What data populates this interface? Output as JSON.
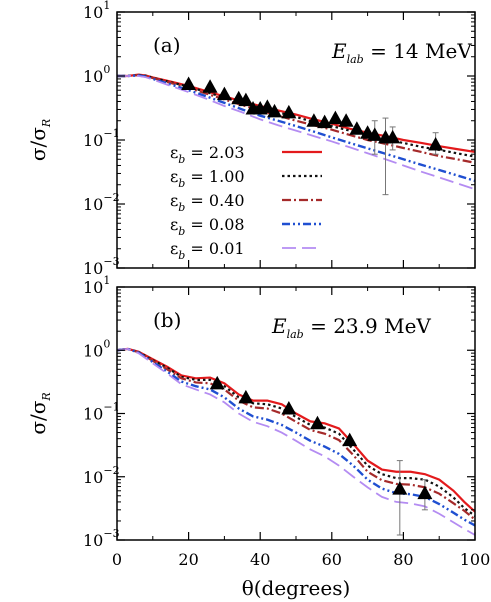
{
  "chart_data": {
    "type": "line",
    "x_axis": {
      "label": "θ(degrees)",
      "range": [
        0,
        100
      ],
      "ticks": [
        0,
        20,
        40,
        60,
        80,
        100
      ]
    },
    "y_axis": {
      "label": "σ/σ_R",
      "scale": "log",
      "range": [
        0.001,
        10
      ],
      "ticks": [
        "10^1",
        "10^0",
        "10^-1",
        "10^-2",
        "10^-3"
      ]
    },
    "legend": {
      "placement": "lower-left",
      "entries": [
        {
          "label": "ε_b = 2.03",
          "color": "#e31a1c",
          "dash": "solid"
        },
        {
          "label": "ε_b = 1.00",
          "color": "#111111",
          "dash": "dotted"
        },
        {
          "label": "ε_b = 0.40",
          "color": "#a52a2a",
          "dash": "dash-dot"
        },
        {
          "label": "ε_b = 0.08",
          "color": "#1f4fd1",
          "dash": "dash-dot-dot"
        },
        {
          "label": "ε_b = 0.01",
          "color": "#b48cf2",
          "dash": "long-dash"
        }
      ]
    },
    "panels": [
      {
        "label": "(a)",
        "energy_label": "E_lab = 14 MeV",
        "data_points": [
          {
            "x": 20,
            "y": 0.75
          },
          {
            "x": 26,
            "y": 0.68
          },
          {
            "x": 30,
            "y": 0.52
          },
          {
            "x": 34,
            "y": 0.45
          },
          {
            "x": 36,
            "y": 0.42
          },
          {
            "x": 38,
            "y": 0.31
          },
          {
            "x": 40,
            "y": 0.31
          },
          {
            "x": 42,
            "y": 0.33
          },
          {
            "x": 44,
            "y": 0.28
          },
          {
            "x": 48,
            "y": 0.27
          },
          {
            "x": 55,
            "y": 0.2
          },
          {
            "x": 58,
            "y": 0.19
          },
          {
            "x": 61,
            "y": 0.22
          },
          {
            "x": 64,
            "y": 0.2
          },
          {
            "x": 67,
            "y": 0.15
          },
          {
            "x": 70,
            "y": 0.13
          },
          {
            "x": 72,
            "y": 0.12
          },
          {
            "x": 75,
            "y": 0.11
          },
          {
            "x": 77,
            "y": 0.11
          },
          {
            "x": 89,
            "y": 0.085
          }
        ],
        "error_bars": [
          {
            "x": 72,
            "low": 0.06,
            "high": 0.2
          },
          {
            "x": 75,
            "low": 0.014,
            "high": 0.22
          },
          {
            "x": 77,
            "low": 0.07,
            "high": 0.16
          },
          {
            "x": 89,
            "low": 0.06,
            "high": 0.13
          }
        ],
        "series": [
          {
            "name": "ε_b = 2.03",
            "x": [
              0,
              3,
              6,
              8,
              10,
              15,
              20,
              25,
              30,
              35,
              40,
              45,
              50,
              55,
              60,
              65,
              70,
              75,
              80,
              85,
              90,
              95,
              100
            ],
            "y": [
              1.0,
              1.0,
              1.05,
              1.02,
              0.95,
              0.82,
              0.7,
              0.58,
              0.48,
              0.4,
              0.34,
              0.29,
              0.25,
              0.21,
              0.18,
              0.15,
              0.13,
              0.115,
              0.1,
              0.09,
              0.08,
              0.072,
              0.065
            ]
          },
          {
            "name": "ε_b = 1.00",
            "x": [
              0,
              3,
              6,
              8,
              10,
              15,
              20,
              25,
              30,
              35,
              40,
              45,
              50,
              55,
              60,
              65,
              70,
              75,
              80,
              85,
              90,
              95,
              100
            ],
            "y": [
              1.0,
              1.0,
              1.04,
              1.01,
              0.94,
              0.8,
              0.68,
              0.56,
              0.46,
              0.38,
              0.32,
              0.27,
              0.23,
              0.19,
              0.165,
              0.14,
              0.12,
              0.1,
              0.09,
              0.078,
              0.07,
              0.062,
              0.055
            ]
          },
          {
            "name": "ε_b = 0.40",
            "x": [
              0,
              3,
              6,
              8,
              10,
              15,
              20,
              25,
              30,
              35,
              40,
              45,
              50,
              55,
              60,
              65,
              70,
              75,
              80,
              85,
              90,
              95,
              100
            ],
            "y": [
              1.0,
              1.0,
              1.03,
              1.0,
              0.93,
              0.78,
              0.65,
              0.53,
              0.43,
              0.35,
              0.29,
              0.24,
              0.2,
              0.17,
              0.145,
              0.12,
              0.1,
              0.087,
              0.075,
              0.065,
              0.056,
              0.05,
              0.044
            ]
          },
          {
            "name": "ε_b = 0.08",
            "x": [
              0,
              3,
              6,
              8,
              10,
              15,
              20,
              25,
              30,
              35,
              40,
              45,
              50,
              55,
              60,
              65,
              70,
              75,
              80,
              85,
              90,
              95,
              100
            ],
            "y": [
              1.0,
              1.0,
              1.02,
              0.98,
              0.9,
              0.74,
              0.6,
              0.48,
              0.38,
              0.3,
              0.24,
              0.2,
              0.165,
              0.135,
              0.11,
              0.09,
              0.074,
              0.061,
              0.05,
              0.041,
              0.034,
              0.028,
              0.023
            ]
          },
          {
            "name": "ε_b = 0.01",
            "x": [
              0,
              3,
              6,
              8,
              10,
              15,
              20,
              25,
              30,
              35,
              40,
              45,
              50,
              55,
              60,
              65,
              70,
              75,
              80,
              85,
              90,
              95,
              100
            ],
            "y": [
              1.0,
              1.0,
              1.0,
              0.96,
              0.88,
              0.7,
              0.56,
              0.44,
              0.34,
              0.27,
              0.21,
              0.17,
              0.14,
              0.115,
              0.095,
              0.077,
              0.062,
              0.05,
              0.04,
              0.032,
              0.026,
              0.021,
              0.017
            ]
          }
        ]
      },
      {
        "label": "(b)",
        "energy_label": "E_lab = 23.9 MeV",
        "data_points": [
          {
            "x": 28,
            "y": 0.3
          },
          {
            "x": 36,
            "y": 0.18
          },
          {
            "x": 48,
            "y": 0.12
          },
          {
            "x": 56,
            "y": 0.07
          },
          {
            "x": 65,
            "y": 0.038
          },
          {
            "x": 79,
            "y": 0.0065
          },
          {
            "x": 86,
            "y": 0.0055
          }
        ],
        "error_bars": [
          {
            "x": 79,
            "low": 0.0012,
            "high": 0.018
          },
          {
            "x": 86,
            "low": 0.003,
            "high": 0.009
          }
        ],
        "series": [
          {
            "name": "ε_b = 2.03",
            "x": [
              0,
              3,
              6,
              10,
              14,
              18,
              22,
              26,
              30,
              34,
              38,
              42,
              46,
              50,
              54,
              58,
              62,
              66,
              70,
              74,
              78,
              82,
              86,
              90,
              94,
              97,
              100
            ],
            "y": [
              1.0,
              1.05,
              0.95,
              0.72,
              0.55,
              0.4,
              0.36,
              0.37,
              0.3,
              0.2,
              0.16,
              0.16,
              0.14,
              0.1,
              0.075,
              0.07,
              0.058,
              0.033,
              0.018,
              0.013,
              0.012,
              0.012,
              0.011,
              0.009,
              0.006,
              0.004,
              0.0028
            ]
          },
          {
            "name": "ε_b = 1.00",
            "x": [
              0,
              3,
              6,
              10,
              14,
              18,
              22,
              26,
              30,
              34,
              38,
              42,
              46,
              50,
              54,
              58,
              62,
              66,
              70,
              74,
              78,
              82,
              86,
              90,
              94,
              97,
              100
            ],
            "y": [
              1.0,
              1.05,
              0.94,
              0.7,
              0.53,
              0.38,
              0.34,
              0.34,
              0.27,
              0.18,
              0.145,
              0.14,
              0.12,
              0.088,
              0.066,
              0.06,
              0.048,
              0.027,
              0.015,
              0.011,
              0.0095,
              0.0095,
              0.009,
              0.007,
              0.0047,
              0.0032,
              0.0024
            ]
          },
          {
            "name": "ε_b = 0.40",
            "x": [
              0,
              3,
              6,
              10,
              14,
              18,
              22,
              26,
              30,
              34,
              38,
              42,
              46,
              50,
              54,
              58,
              62,
              66,
              70,
              74,
              78,
              82,
              86,
              90,
              94,
              97,
              100
            ],
            "y": [
              1.0,
              1.05,
              0.93,
              0.68,
              0.5,
              0.36,
              0.31,
              0.3,
              0.24,
              0.16,
              0.125,
              0.12,
              0.1,
              0.074,
              0.055,
              0.048,
              0.038,
              0.022,
              0.012,
              0.0088,
              0.0077,
              0.0075,
              0.0068,
              0.0054,
              0.0038,
              0.0029,
              0.0021
            ]
          },
          {
            "name": "ε_b = 0.08",
            "x": [
              0,
              3,
              6,
              10,
              14,
              18,
              22,
              26,
              30,
              34,
              38,
              42,
              46,
              50,
              54,
              58,
              62,
              66,
              70,
              74,
              78,
              82,
              86,
              90,
              94,
              97,
              100
            ],
            "y": [
              1.0,
              1.05,
              0.92,
              0.65,
              0.46,
              0.32,
              0.27,
              0.24,
              0.18,
              0.12,
              0.09,
              0.08,
              0.066,
              0.05,
              0.037,
              0.03,
              0.023,
              0.015,
              0.009,
              0.0065,
              0.0055,
              0.0053,
              0.0048,
              0.0037,
              0.0027,
              0.0021,
              0.0017
            ]
          },
          {
            "name": "ε_b = 0.01",
            "x": [
              0,
              3,
              6,
              10,
              14,
              18,
              22,
              26,
              30,
              34,
              38,
              42,
              46,
              50,
              54,
              58,
              62,
              66,
              70,
              74,
              78,
              82,
              86,
              90,
              94,
              97,
              100
            ],
            "y": [
              1.0,
              1.05,
              0.9,
              0.62,
              0.43,
              0.29,
              0.24,
              0.2,
              0.15,
              0.1,
              0.074,
              0.063,
              0.05,
              0.037,
              0.027,
              0.021,
              0.015,
              0.01,
              0.0068,
              0.0048,
              0.004,
              0.0038,
              0.0034,
              0.0026,
              0.0019,
              0.0015,
              0.0012
            ]
          }
        ]
      }
    ]
  }
}
